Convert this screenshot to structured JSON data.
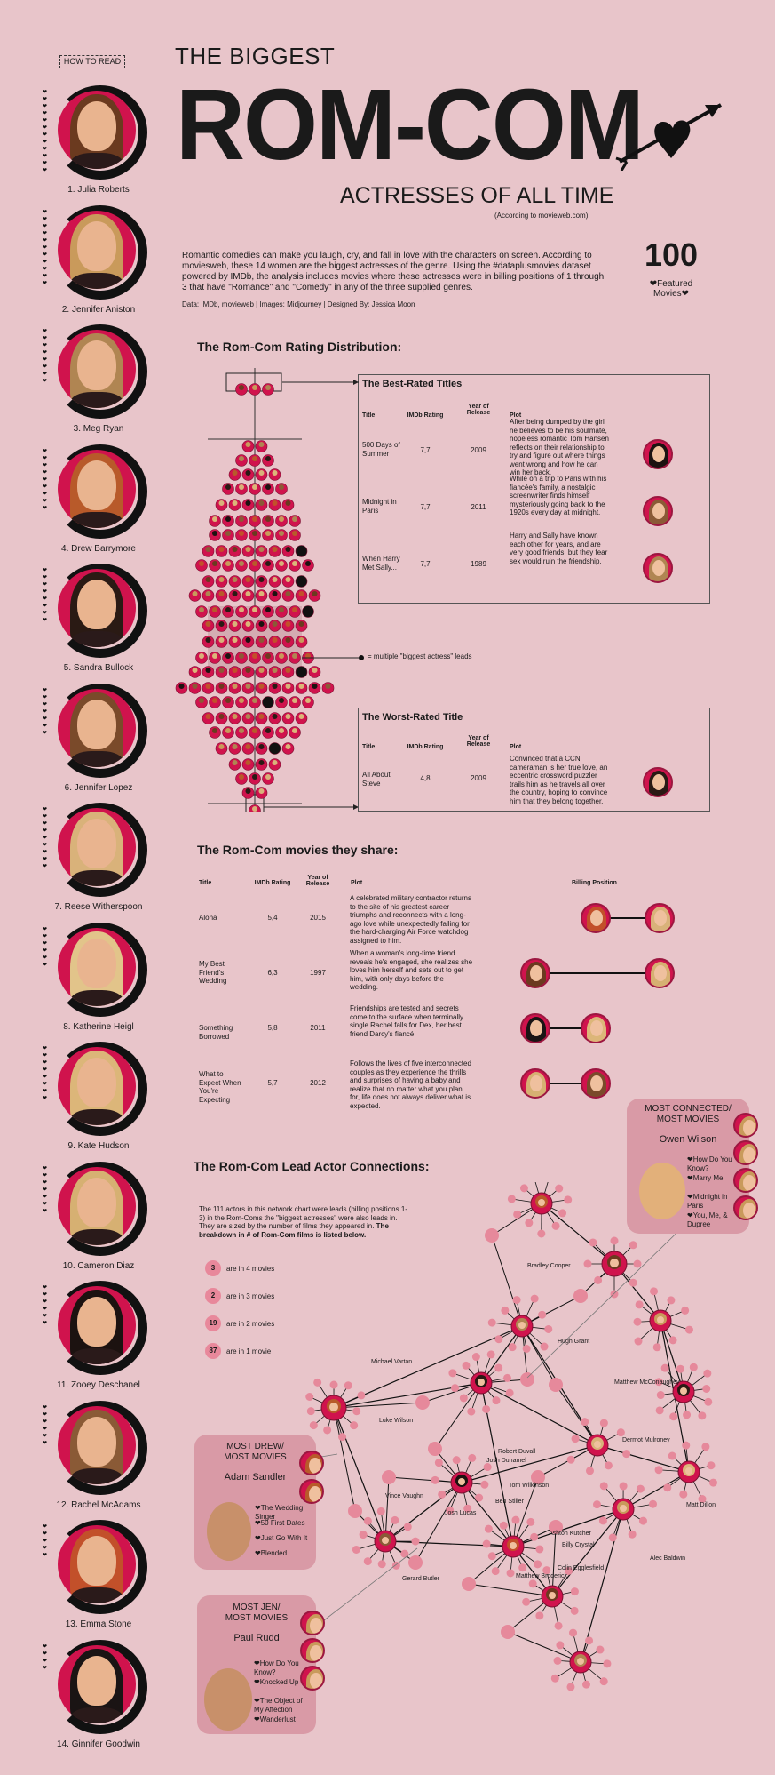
{
  "how_to_read": "HOW TO READ",
  "title": {
    "line1": "THE BIGGEST",
    "line2": "ROM-COM",
    "line3": "ACTRESSES OF ALL TIME",
    "source_note": "(According to movieweb.com)"
  },
  "intro": "Romantic comedies can make you laugh, cry, and fall in love with the characters on screen.  According to moviesweb, these 14 women are the biggest actresses of the genre.  Using the #dataplusmovies dataset powered by IMDb, the analysis includes movies where these actresses were in billing positions of 1 through 3 that have \"Romance\" and \"Comedy\" in any of the three supplied genres.",
  "credits": "Data: IMDb, movieweb  |  Images: Midjourney  |  Designed By: Jessica Moon",
  "featured": {
    "count": "100",
    "label_line1": "❤Featured",
    "label_line2": "Movies❤"
  },
  "actresses": [
    {
      "name": "1. Julia Roberts",
      "hair": "#6b3a1f",
      "hearts": 12
    },
    {
      "name": "2. Jennifer Aniston",
      "hair": "#c99a5b",
      "hearts": 11
    },
    {
      "name": "3. Meg Ryan",
      "hair": "#b08552",
      "hearts": 8
    },
    {
      "name": "4. Drew Barrymore",
      "hair": "#b85a2a",
      "hearts": 9
    },
    {
      "name": "5. Sandra Bullock",
      "hair": "#2a1a14",
      "hearts": 8
    },
    {
      "name": "6. Jennifer Lopez",
      "hair": "#7a4a2a",
      "hearts": 7
    },
    {
      "name": "7. Reese Witherspoon",
      "hair": "#d9b27a",
      "hearts": 9
    },
    {
      "name": "8. Katherine Heigl",
      "hair": "#e2c48a",
      "hearts": 6
    },
    {
      "name": "9. Kate Hudson",
      "hair": "#dcb679",
      "hearts": 8
    },
    {
      "name": "10. Cameron Diaz",
      "hair": "#d6b072",
      "hearts": 7
    },
    {
      "name": "11. Zooey Deschanel",
      "hair": "#1c1210",
      "hearts": 6
    },
    {
      "name": "12. Rachel McAdams",
      "hair": "#8a5a36",
      "hearts": 6
    },
    {
      "name": "13. Emma Stone",
      "hair": "#c2502a",
      "hearts": 5
    },
    {
      "name": "14. Ginnifer Goodwin",
      "hair": "#1a1414",
      "hearts": 4
    }
  ],
  "rating_distribution": {
    "title": "The Rom-Com Rating Distribution:",
    "multiple_note": "= multiple \"biggest actress\" leads"
  },
  "best_rated": {
    "title": "The Best-Rated Titles",
    "headers": {
      "title": "Title",
      "rating": "IMDb Rating",
      "year": "Year of Release",
      "plot": "Plot"
    },
    "rows": [
      {
        "title": "500 Days of Summer",
        "rating": "7,7",
        "year": "2009",
        "plot": "After being dumped by the girl he believes to be his soulmate, hopeless romantic Tom Hansen reflects on their relationship to try and figure out where things went wrong and how he can win her back.",
        "hair": "#1c1210"
      },
      {
        "title": "Midnight in Paris",
        "rating": "7,7",
        "year": "2011",
        "plot": "While on a trip to Paris with his fiancée's family, a nostalgic screenwriter finds himself mysteriously going back to the 1920s every day at midnight.",
        "hair": "#8a5a36"
      },
      {
        "title": "When Harry Met Sally...",
        "rating": "7,7",
        "year": "1989",
        "plot": "Harry and Sally have known each other for years, and are very good friends, but they fear sex would ruin the friendship.",
        "hair": "#b08552"
      }
    ]
  },
  "worst_rated": {
    "title": "The Worst-Rated Title",
    "headers": {
      "title": "Title",
      "rating": "IMDb Rating",
      "year": "Year of Release",
      "plot": "Plot"
    },
    "rows": [
      {
        "title": "All About Steve",
        "rating": "4,8",
        "year": "2009",
        "plot": "Convinced that a CCN cameraman is her true love, an eccentric crossword puzzler trails him as he travels all over the country, hoping to convince him that they belong together.",
        "hair": "#2a1a14"
      }
    ]
  },
  "shared": {
    "title": "The Rom-Com movies they share:",
    "headers": {
      "title": "Title",
      "rating": "IMDb Rating",
      "year": "Year of Release",
      "plot": "Plot",
      "billing": "Billing Position"
    },
    "rows": [
      {
        "title": "Aloha",
        "rating": "5,4",
        "year": "2015",
        "plot": "A celebrated military contractor returns to the site of his greatest career triumphs and reconnects with a long-ago love while unexpectedly falling for the hard-charging Air Force watchdog assigned to him.",
        "a": "#c2502a",
        "b": "#d9b27a"
      },
      {
        "title": "My Best Friend's Wedding",
        "rating": "6,3",
        "year": "1997",
        "plot": "When a woman's long-time friend reveals he's engaged, she realizes she loves him herself and sets out to get him, with only days before the wedding.",
        "a": "#6b3a1f",
        "b": "#d6b072"
      },
      {
        "title": "Something Borrowed",
        "rating": "5,8",
        "year": "2011",
        "plot": "Friendships are tested and secrets come to the surface when terminally single Rachel falls for Dex, her best friend Darcy's fiancé.",
        "a": "#1a1414",
        "b": "#dcb679"
      },
      {
        "title": "What to Expect When You're Expecting",
        "rating": "5,7",
        "year": "2012",
        "plot": "Follows the lives of five interconnected couples as they experience the thrills and surprises of having a baby and realize that no matter what you plan for, life does not always deliver what is expected.",
        "a": "#d6b072",
        "b": "#7a4a2a"
      }
    ]
  },
  "connections": {
    "title": "The Rom-Com Lead Actor Connections:",
    "desc": "The 111 actors in this network chart were leads (billing positions 1-3) in the Rom-Coms the \"biggest actresses\" were also leads in. They are sized by the number of films they appeared in.",
    "desc_bold": "The breakdown in # of Rom-Com films is listed below.",
    "legend": [
      {
        "n": "3",
        "text": "are in 4 movies"
      },
      {
        "n": "2",
        "text": "are in 3 movies"
      },
      {
        "n": "19",
        "text": "are in 2 movies"
      },
      {
        "n": "87",
        "text": "are in 1 movie"
      }
    ],
    "labels": [
      "Bradley Cooper",
      "Hugh Grant",
      "Matthew McConaughey",
      "Michael Vartan",
      "Luke Wilson",
      "Dermot Mulroney",
      "Robert Duvall",
      "Josh Duhamel",
      "Tom Wilkinson",
      "Vince Vaughn",
      "Ben Stiller",
      "Josh Lucas",
      "Matt Dillon",
      "Ashton Kutcher",
      "Billy Crystal",
      "Colin Egglesfield",
      "Alec Baldwin",
      "Matthew Broderick",
      "Gerard Butler"
    ]
  },
  "callouts": {
    "owen": {
      "header1": "MOST CONNECTED/",
      "header2": "MOST MOVIES",
      "name": "Owen Wilson",
      "movies": [
        "❤How Do You Know?",
        "❤Marry Me",
        "❤Midnight in Paris",
        "❤You, Me, & Dupree"
      ]
    },
    "adam": {
      "header1": "MOST DREW/",
      "header2": "MOST MOVIES",
      "name": "Adam Sandler",
      "movies": [
        "❤The Wedding Singer",
        "❤50 First Dates",
        "❤Just Go With It",
        "❤Blended"
      ]
    },
    "paul": {
      "header1": "MOST JEN/",
      "header2": "MOST MOVIES",
      "name": "Paul Rudd",
      "movies": [
        "❤How Do You Know?",
        "❤Knocked Up",
        "❤The Object of My Affection",
        "❤Wanderlust"
      ]
    }
  },
  "colors": {
    "background": "#e8c5ca",
    "accent": "#d0134d",
    "pink_node": "#e6899b",
    "callout": "#d99aa6"
  }
}
